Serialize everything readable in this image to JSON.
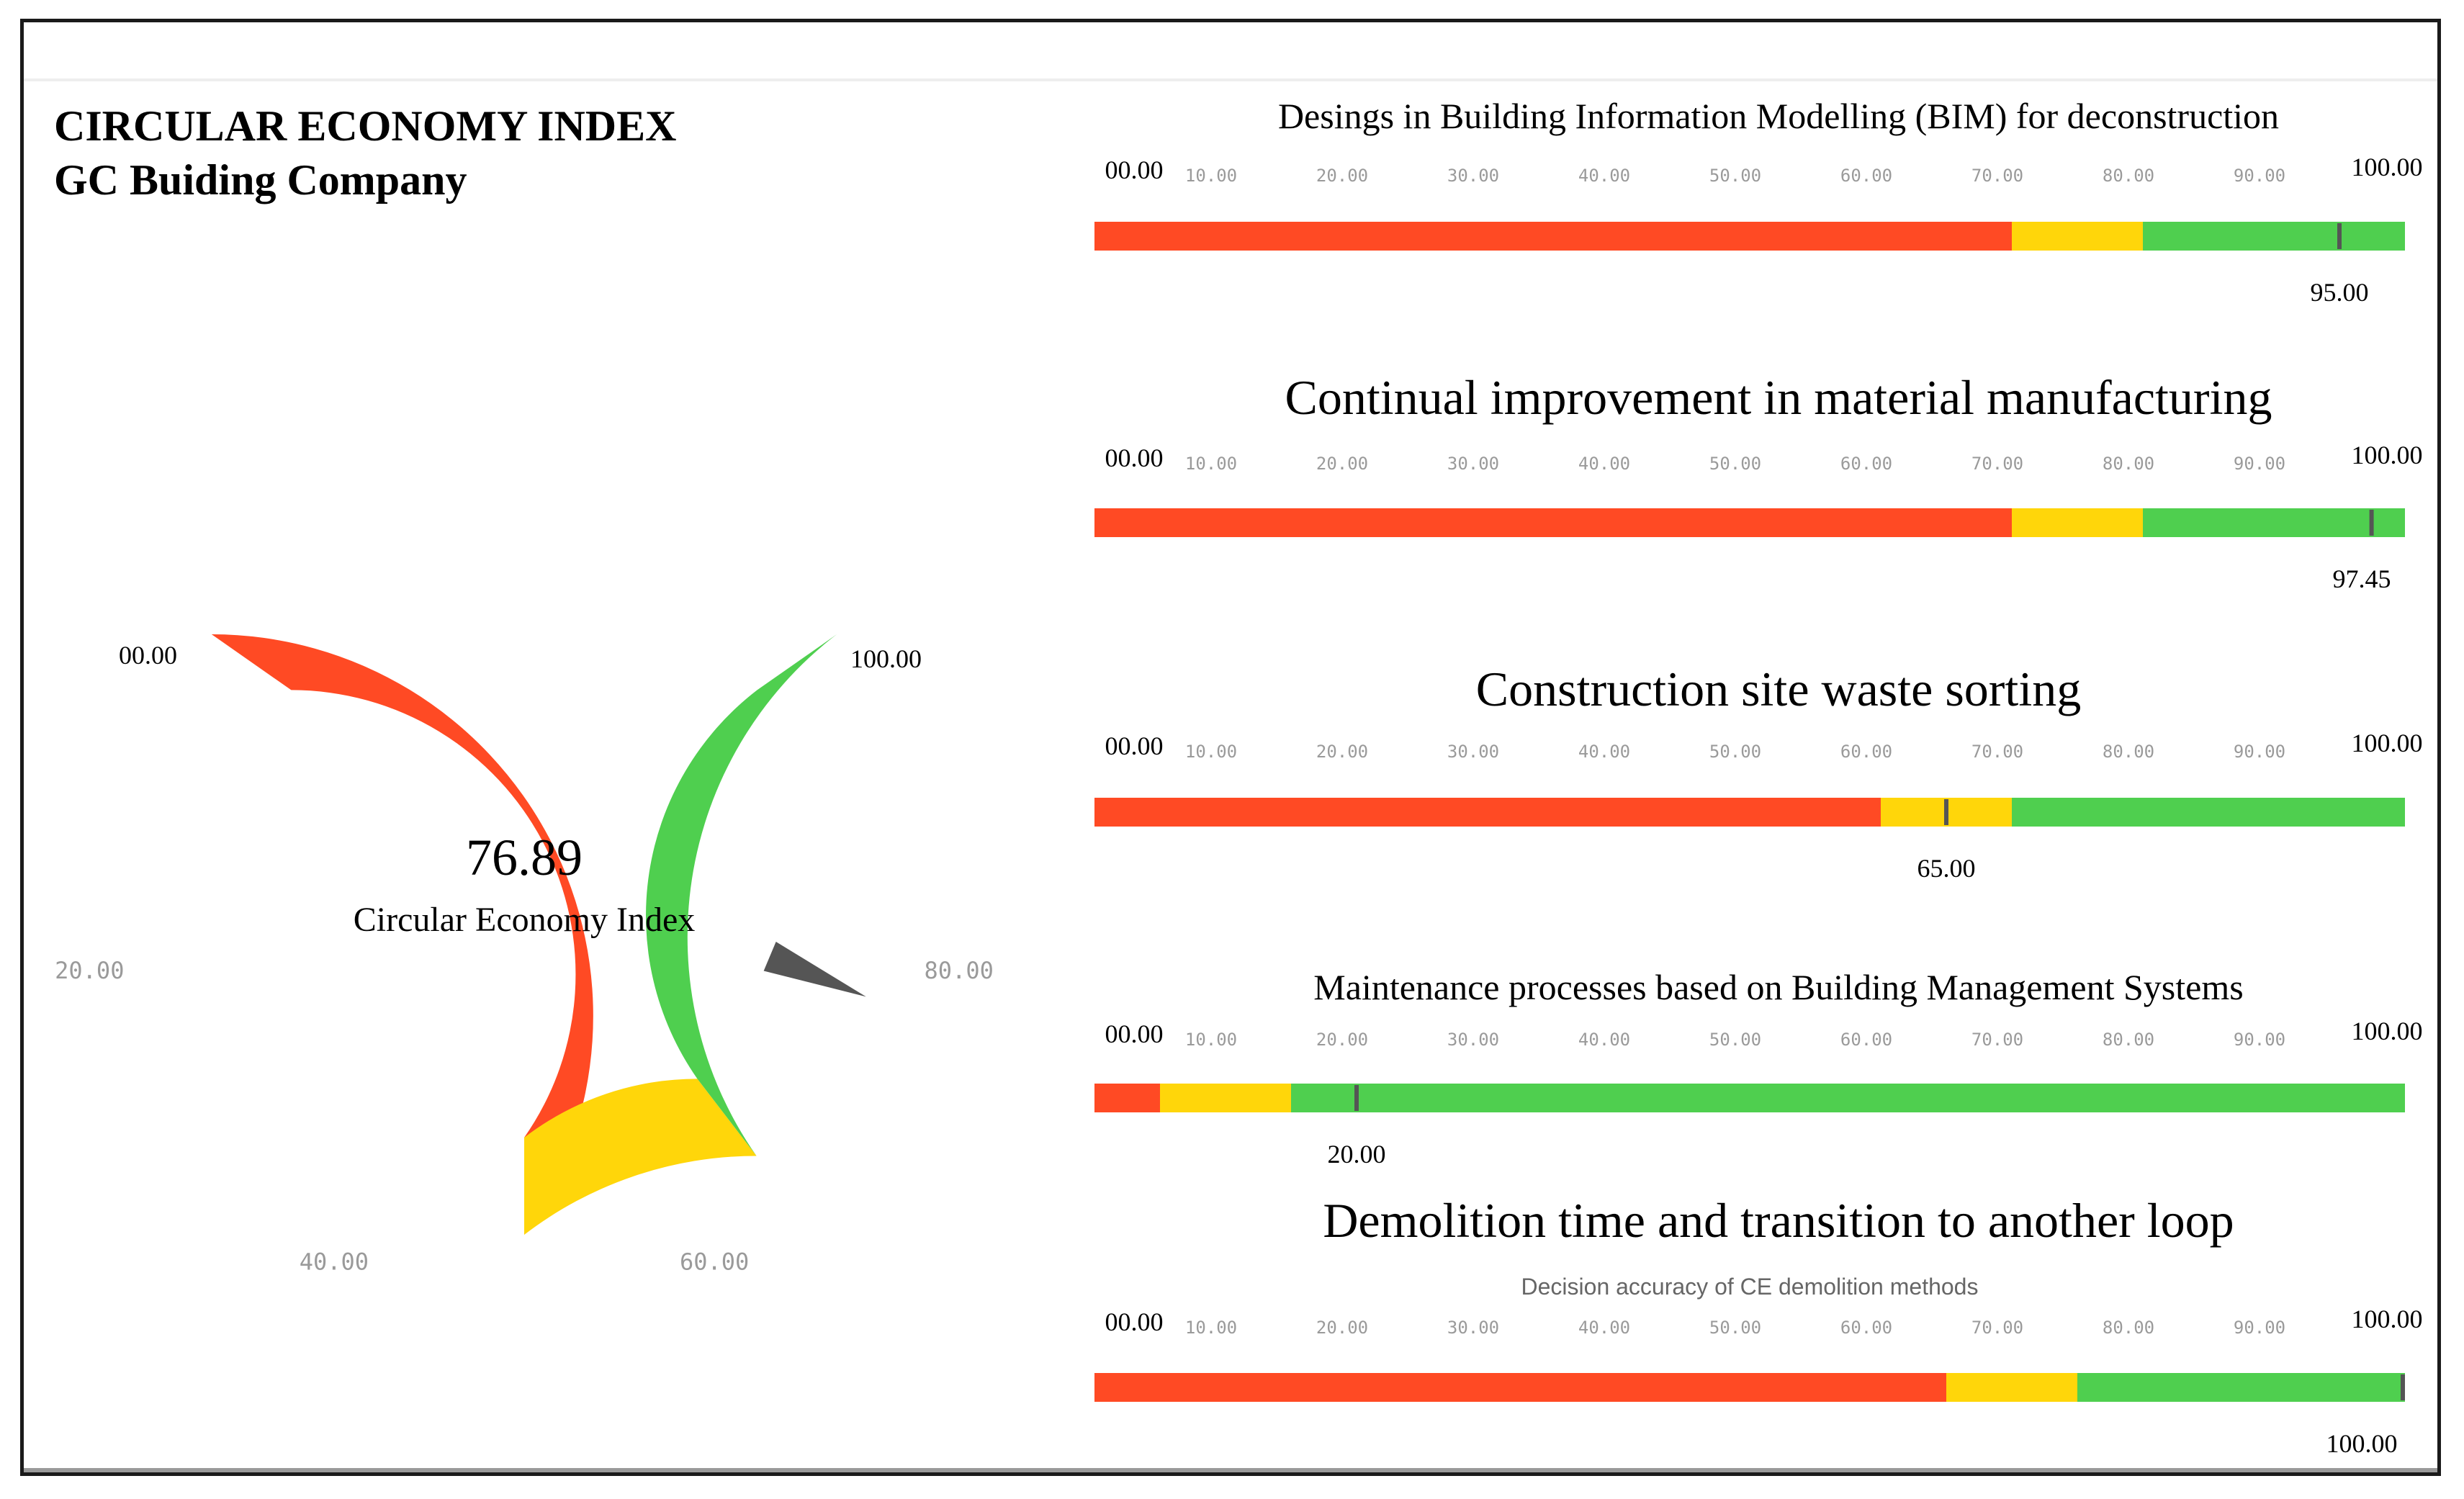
{
  "header": {
    "title": "CIRCULAR ECONOMY INDEX",
    "subtitle": "GC Buiding Company"
  },
  "colors": {
    "red": "#ff4a24",
    "yellow": "#ffd60a",
    "green": "#4fcf4f",
    "needle": "#555555",
    "tick_text": "#9a9a9a"
  },
  "chart_data": [
    {
      "type": "gauge",
      "id": "main-gauge",
      "value": 76.89,
      "value_label": "76.89",
      "caption": "Circular Economy Index",
      "min": 0,
      "max": 100,
      "min_label": "00.00",
      "max_label": "100.00",
      "bands": [
        {
          "from": 0,
          "to": 50,
          "color": "red"
        },
        {
          "from": 50,
          "to": 65,
          "color": "yellow"
        },
        {
          "from": 65,
          "to": 100,
          "color": "green"
        }
      ],
      "ticks": [
        {
          "value": 20,
          "label": "20.00"
        },
        {
          "value": 40,
          "label": "40.00"
        },
        {
          "value": 60,
          "label": "60.00"
        },
        {
          "value": 80,
          "label": "80.00"
        }
      ]
    },
    {
      "type": "bullet",
      "title": "Desings in Building Information Modelling (BIM) for deconstruction",
      "title_size": "small",
      "min_label": "00.00",
      "max_label": "100.00",
      "tick_labels": [
        "10.00",
        "20.00",
        "30.00",
        "40.00",
        "50.00",
        "60.00",
        "70.00",
        "80.00",
        "90.00"
      ],
      "bands": [
        {
          "from": 0,
          "to": 70,
          "color": "red"
        },
        {
          "from": 70,
          "to": 80,
          "color": "yellow"
        },
        {
          "from": 80,
          "to": 100,
          "color": "green"
        }
      ],
      "value": 95,
      "value_label": "95.00"
    },
    {
      "type": "bullet",
      "title": "Continual improvement in material manufacturing",
      "title_size": "large",
      "min_label": "00.00",
      "max_label": "100.00",
      "tick_labels": [
        "10.00",
        "20.00",
        "30.00",
        "40.00",
        "50.00",
        "60.00",
        "70.00",
        "80.00",
        "90.00"
      ],
      "bands": [
        {
          "from": 0,
          "to": 70,
          "color": "red"
        },
        {
          "from": 70,
          "to": 80,
          "color": "yellow"
        },
        {
          "from": 80,
          "to": 100,
          "color": "green"
        }
      ],
      "value": 97.45,
      "value_label": "97.45"
    },
    {
      "type": "bullet",
      "title": "Construction site waste sorting",
      "title_size": "large",
      "min_label": "00.00",
      "max_label": "100.00",
      "tick_labels": [
        "10.00",
        "20.00",
        "30.00",
        "40.00",
        "50.00",
        "60.00",
        "70.00",
        "80.00",
        "90.00"
      ],
      "bands": [
        {
          "from": 0,
          "to": 60,
          "color": "red"
        },
        {
          "from": 60,
          "to": 70,
          "color": "yellow"
        },
        {
          "from": 70,
          "to": 100,
          "color": "green"
        }
      ],
      "value": 65,
      "value_label": "65.00"
    },
    {
      "type": "bullet",
      "title": "Maintenance processes based on Building Management Systems",
      "title_size": "small",
      "min_label": "00.00",
      "max_label": "100.00",
      "tick_labels": [
        "10.00",
        "20.00",
        "30.00",
        "40.00",
        "50.00",
        "60.00",
        "70.00",
        "80.00",
        "90.00"
      ],
      "bands": [
        {
          "from": 0,
          "to": 5,
          "color": "red"
        },
        {
          "from": 5,
          "to": 15,
          "color": "yellow"
        },
        {
          "from": 15,
          "to": 100,
          "color": "green"
        }
      ],
      "value": 20,
      "value_label": "20.00"
    },
    {
      "type": "bullet",
      "title": "Demolition time and transition to another loop",
      "title_size": "large",
      "subtitle": "Decision accuracy of CE demolition methods",
      "min_label": "00.00",
      "max_label": "100.00",
      "tick_labels": [
        "10.00",
        "20.00",
        "30.00",
        "40.00",
        "50.00",
        "60.00",
        "70.00",
        "80.00",
        "90.00"
      ],
      "bands": [
        {
          "from": 0,
          "to": 65,
          "color": "red"
        },
        {
          "from": 65,
          "to": 75,
          "color": "yellow"
        },
        {
          "from": 75,
          "to": 100,
          "color": "green"
        }
      ],
      "value": 100,
      "value_label": "100.00"
    }
  ]
}
